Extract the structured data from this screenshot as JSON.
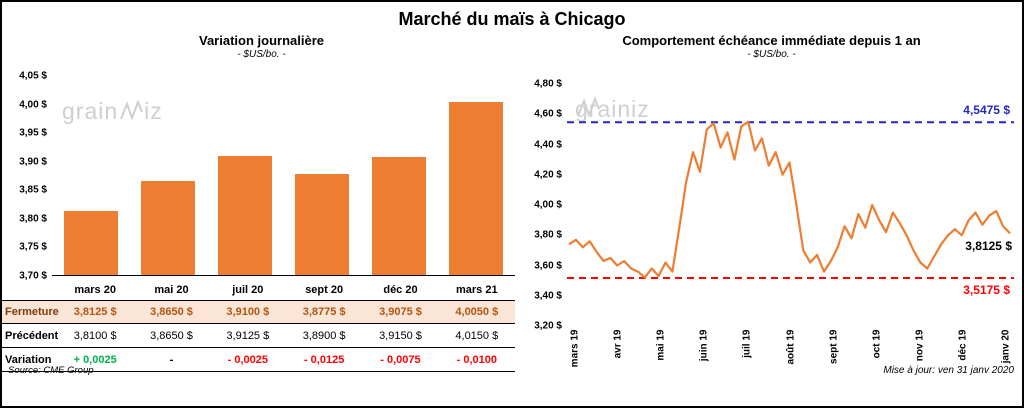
{
  "title": "Marché du maïs à Chicago",
  "watermark": {
    "part1": "grain",
    "part2": "iz"
  },
  "left_panel": {
    "title": "Variation journalière",
    "subtitle": "- $US/bo. -"
  },
  "right_panel": {
    "title": "Comportement échéance immédiate depuis 1 an",
    "subtitle": "- $US/bo. -"
  },
  "table": {
    "columns": [
      "mars 20",
      "mai 20",
      "juil 20",
      "sept 20",
      "déc 20",
      "mars 21"
    ],
    "rows": [
      {
        "label": "Fermeture",
        "class": "close",
        "values": [
          "3,8125 $",
          "3,8650 $",
          "3,9100 $",
          "3,8775 $",
          "3,9075 $",
          "4,0050 $"
        ]
      },
      {
        "label": "Précédent",
        "class": "prev",
        "values": [
          "3,8100 $",
          "3,8650 $",
          "3,9125 $",
          "3,8900 $",
          "3,9150 $",
          "4,0150 $"
        ]
      },
      {
        "label": "Variation",
        "class": "var",
        "values": [
          "+ 0,0025",
          "-",
          "- 0,0025",
          "- 0,0125",
          "- 0,0075",
          "- 0,0100"
        ],
        "value_classes": [
          "pos",
          "neutral",
          "neg",
          "neg",
          "neg",
          "neg"
        ]
      }
    ]
  },
  "footer": {
    "source": "Source: CME Group",
    "updated": "Mise à jour: ven 31 janv 2020"
  },
  "chart_data": [
    {
      "type": "bar",
      "title": "Variation journalière",
      "subtitle": "- $US/bo. -",
      "categories": [
        "mars 20",
        "mai 20",
        "juil 20",
        "sept 20",
        "déc 20",
        "mars 21"
      ],
      "values": [
        3.8125,
        3.865,
        3.91,
        3.8775,
        3.9075,
        4.005
      ],
      "ylim": [
        3.7,
        4.05
      ],
      "yticks": [
        {
          "value": 4.05,
          "label": "4,05 $"
        },
        {
          "value": 4.0,
          "label": "4,00 $"
        },
        {
          "value": 3.95,
          "label": "3,95 $"
        },
        {
          "value": 3.9,
          "label": "3,90 $"
        },
        {
          "value": 3.85,
          "label": "3,85 $"
        },
        {
          "value": 3.8,
          "label": "3,80 $"
        },
        {
          "value": 3.75,
          "label": "3,75 $"
        },
        {
          "value": 3.7,
          "label": "3,70 $"
        }
      ],
      "bar_color": "#ED7D31",
      "grid": false,
      "legend": "none"
    },
    {
      "type": "line",
      "title": "Comportement échéance immédiate depuis 1 an",
      "subtitle": "- $US/bo. -",
      "x_labels": [
        "mars 19",
        "avr 19",
        "mai 19",
        "juin 19",
        "juil 19",
        "août 19",
        "sept 19",
        "oct 19",
        "nov 19",
        "déc 19",
        "janv 20"
      ],
      "values": [
        3.74,
        3.77,
        3.72,
        3.76,
        3.69,
        3.63,
        3.65,
        3.6,
        3.63,
        3.58,
        3.56,
        3.52,
        3.58,
        3.53,
        3.62,
        3.56,
        3.85,
        4.15,
        4.35,
        4.22,
        4.5,
        4.54,
        4.38,
        4.48,
        4.3,
        4.52,
        4.55,
        4.36,
        4.44,
        4.26,
        4.35,
        4.2,
        4.28,
        4.0,
        3.7,
        3.62,
        3.67,
        3.56,
        3.63,
        3.72,
        3.86,
        3.78,
        3.94,
        3.85,
        4.0,
        3.9,
        3.82,
        3.95,
        3.88,
        3.8,
        3.7,
        3.62,
        3.58,
        3.66,
        3.74,
        3.8,
        3.84,
        3.8,
        3.9,
        3.95,
        3.87,
        3.93,
        3.96,
        3.86,
        3.8125
      ],
      "ylim": [
        3.2,
        4.8
      ],
      "yticks": [
        {
          "value": 4.8,
          "label": "4,80 $"
        },
        {
          "value": 4.6,
          "label": "4,60 $"
        },
        {
          "value": 4.4,
          "label": "4,40 $"
        },
        {
          "value": 4.2,
          "label": "4,20 $"
        },
        {
          "value": 4.0,
          "label": "4,00 $"
        },
        {
          "value": 3.8,
          "label": "3,80 $"
        },
        {
          "value": 3.6,
          "label": "3,60 $"
        },
        {
          "value": 3.4,
          "label": "3,40 $"
        },
        {
          "value": 3.2,
          "label": "3,20 $"
        }
      ],
      "line_color": "#ED7D31",
      "ref_lines": [
        {
          "value": 4.5475,
          "label": "4,5475 $",
          "color": "#2727C4",
          "position": "above"
        },
        {
          "value": 3.5175,
          "label": "3,5175 $",
          "color": "#FF0000",
          "position": "below"
        }
      ],
      "last_point_label": {
        "value": 3.8125,
        "label": "3,8125 $",
        "color": "#000000"
      },
      "grid": false,
      "legend": "none"
    }
  ]
}
